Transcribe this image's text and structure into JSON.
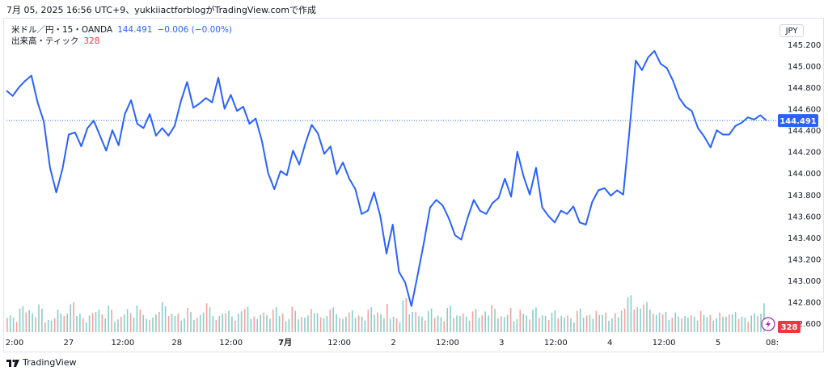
{
  "caption": "7月 05, 2025 16:56 UTC+9、yukkiiactforblogがTradingView.comで作成",
  "legend": {
    "symbol": "米ドル／円・15・OANDA",
    "price": "144.491",
    "change": "−0.006 (−0.00%)",
    "volume_label": "出来高・ティック",
    "volume_value": "328"
  },
  "currency": "JPY",
  "footer_brand": "TradingView",
  "colors": {
    "line": "#2962ff",
    "vol_up": "#26a69a",
    "vol_down": "#ef5350",
    "price_badge": "#2962ff",
    "vol_badge": "#f23645"
  },
  "chart_data": {
    "type": "line",
    "interval": "15",
    "y_axis": {
      "ticks": [
        "145.200",
        "145.000",
        "144.800",
        "144.600",
        "144.400",
        "144.200",
        "144.000",
        "143.800",
        "143.600",
        "143.400",
        "143.200",
        "143.000",
        "142.800",
        "142.600"
      ],
      "ylim": [
        142.6,
        145.2
      ],
      "current_price_label": "144.491",
      "current_volume_label": "328"
    },
    "x_axis": {
      "ticks": [
        "2:00",
        "27",
        "12:00",
        "28",
        "12:00",
        "7月",
        "12:00",
        "2",
        "12:00",
        "3",
        "12:00",
        "4",
        "12:00",
        "5",
        "08:"
      ]
    },
    "series": [
      {
        "values": [
          144.77,
          144.72,
          144.8,
          144.86,
          144.91,
          144.66,
          144.48,
          144.05,
          143.82,
          144.04,
          144.36,
          144.38,
          144.25,
          144.42,
          144.49,
          144.35,
          144.21,
          144.4,
          144.26,
          144.55,
          144.68,
          144.46,
          144.42,
          144.55,
          144.35,
          144.42,
          144.35,
          144.44,
          144.67,
          144.85,
          144.61,
          144.65,
          144.7,
          144.66,
          144.89,
          144.6,
          144.73,
          144.58,
          144.62,
          144.46,
          144.51,
          144.3,
          144.0,
          143.85,
          144.02,
          143.98,
          144.21,
          144.08,
          144.28,
          144.45,
          144.37,
          144.18,
          144.25,
          143.99,
          144.1,
          143.95,
          143.85,
          143.62,
          143.65,
          143.82,
          143.6,
          143.25,
          143.52,
          143.08,
          142.98,
          142.76,
          143.05,
          143.35,
          143.68,
          143.75,
          143.7,
          143.58,
          143.42,
          143.38,
          143.58,
          143.75,
          143.65,
          143.62,
          143.72,
          143.77,
          143.95,
          143.78,
          144.2,
          143.97,
          143.8,
          144.05,
          143.68,
          143.6,
          143.54,
          143.65,
          143.62,
          143.69,
          143.54,
          143.52,
          143.73,
          143.84,
          143.86,
          143.79,
          143.84,
          143.8,
          144.4,
          145.05,
          144.96,
          145.08,
          145.14,
          145.02,
          144.98,
          144.86,
          144.7,
          144.62,
          144.58,
          144.42,
          144.34,
          144.24,
          144.4,
          144.36,
          144.36,
          144.44,
          144.47,
          144.52,
          144.5,
          144.54,
          144.49
        ]
      }
    ],
    "volume": [
      30,
      22,
      41,
      37,
      28,
      46,
      18,
      24,
      35,
      27,
      50,
      33,
      21,
      29,
      38,
      26,
      44,
      19,
      31,
      36,
      24,
      41,
      28,
      22,
      35,
      48,
      27,
      30,
      25,
      39,
      21,
      33,
      45,
      26,
      29,
      37,
      23,
      31,
      42,
      28,
      20,
      34,
      26,
      38,
      30,
      24,
      41,
      22,
      28,
      35,
      31,
      25,
      43,
      27,
      22,
      36,
      30,
      24,
      39,
      33,
      26,
      47,
      28,
      21,
      55,
      34,
      30,
      25,
      38,
      29,
      22,
      41,
      27,
      33,
      24,
      36,
      28,
      31,
      45,
      25,
      30,
      38,
      22,
      34,
      27,
      40,
      29,
      24,
      33,
      26,
      30,
      21,
      37,
      28,
      25,
      35,
      31,
      24,
      29,
      36,
      62,
      44,
      38,
      52,
      35,
      29,
      33,
      26,
      31,
      24,
      28,
      22,
      35,
      27,
      24,
      30,
      26,
      33,
      28,
      22,
      29,
      31,
      45
    ]
  }
}
